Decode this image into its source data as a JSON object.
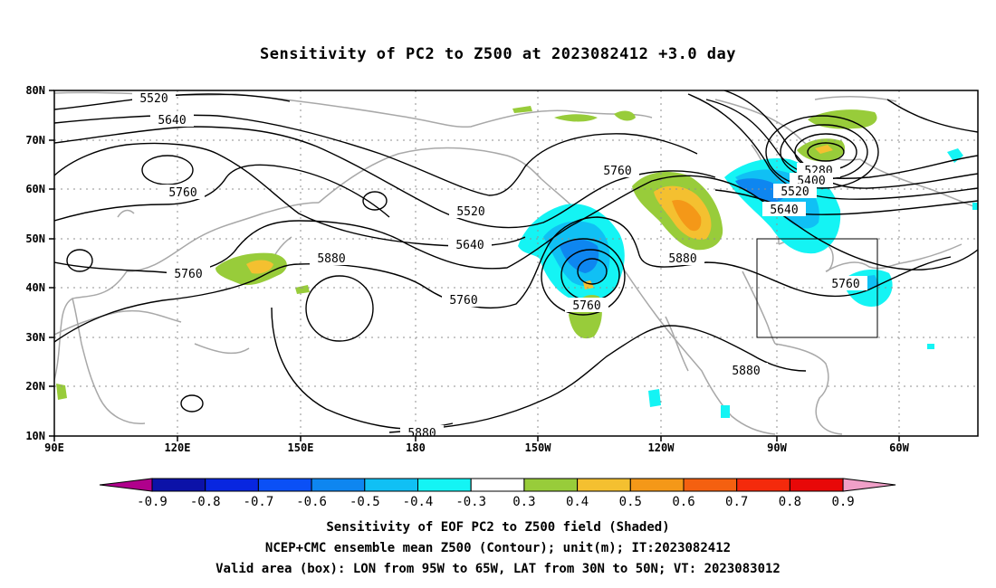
{
  "title": "Sensitivity of PC2 to Z500 at 2023082412 +3.0 day",
  "axes": {
    "lat_labels": [
      "80N",
      "70N",
      "60N",
      "50N",
      "40N",
      "30N",
      "20N",
      "10N"
    ],
    "lon_labels": [
      "90E",
      "120E",
      "150E",
      "180",
      "150W",
      "120W",
      "90W",
      "60W"
    ]
  },
  "contour_labels": [
    "5520",
    "5640",
    "5760",
    "5760",
    "5520",
    "5640",
    "5760",
    "5880",
    "5760",
    "5760",
    "5880",
    "5280",
    "5400",
    "5520",
    "5640",
    "5760",
    "5880",
    "5880"
  ],
  "colorbar": {
    "labels": [
      "-0.9",
      "-0.8",
      "-0.7",
      "-0.6",
      "-0.5",
      "-0.4",
      "-0.3",
      "0.3",
      "0.4",
      "0.5",
      "0.6",
      "0.7",
      "0.8",
      "0.9"
    ],
    "colors": [
      "#b0008c",
      "#0c12a8",
      "#0826e0",
      "#0b50f6",
      "#0e86f0",
      "#10c0f4",
      "#14f4f4",
      "#ffffff",
      "#98cc3a",
      "#f4c030",
      "#f49818",
      "#f46010",
      "#f42a0c",
      "#e80808",
      "#f0a0c8"
    ]
  },
  "captions": [
    "Sensitivity of EOF PC2 to Z500 field (Shaded)",
    "NCEP+CMC ensemble mean Z500 (Contour); unit(m); IT:2023082412",
    "Valid area (box): LON from 95W to 65W, LAT from 30N to 50N; VT: 2023083012"
  ]
}
